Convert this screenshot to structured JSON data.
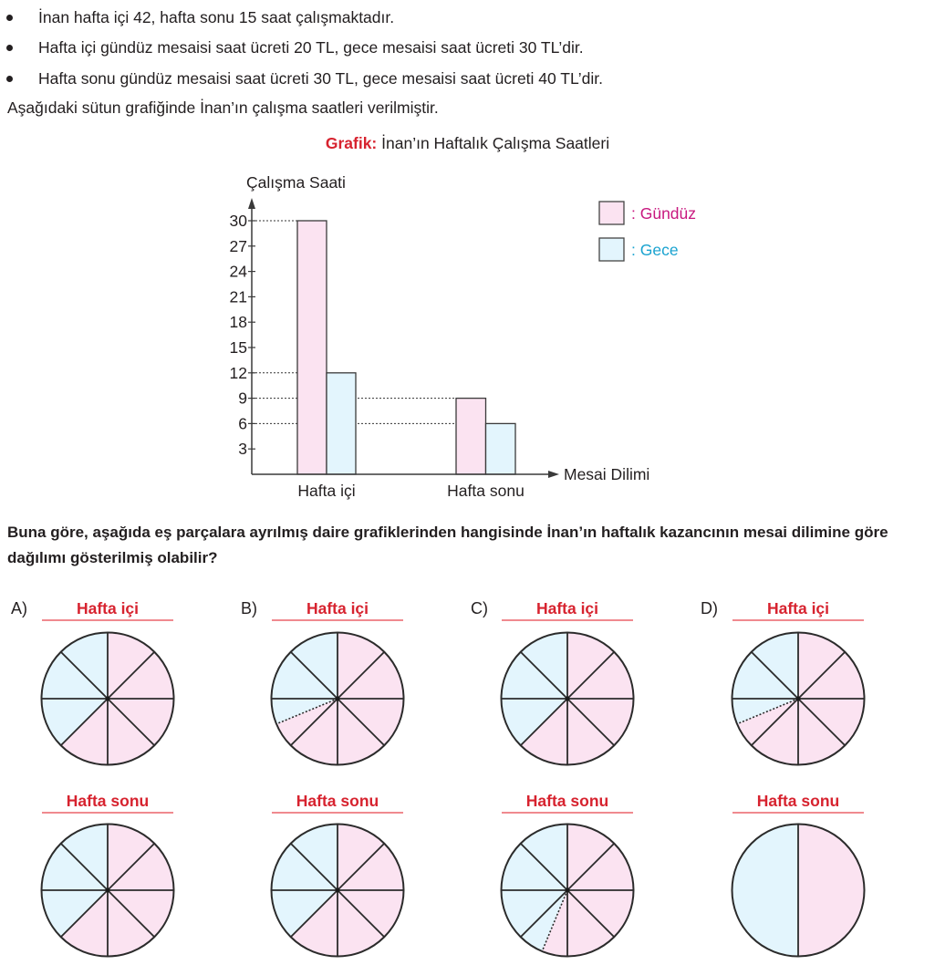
{
  "bullets": [
    "İnan hafta içi 42, hafta sonu 15 saat çalışmaktadır.",
    "Hafta içi gündüz mesaisi saat ücreti 20 TL, gece mesaisi saat ücreti 30 TL’dir.",
    "Hafta sonu gündüz mesaisi saat ücreti 30 TL, gece mesaisi saat ücreti 40 TL’dir."
  ],
  "intro": "Aşağıdaki sütun grafiğinde İnan’ın çalışma saatleri verilmiştir.",
  "colors": {
    "gunduz_fill": "#fbe3f1",
    "gece_fill": "#e3f5fd",
    "gunduz_text": "#c8187f",
    "gece_text": "#1aa3d0",
    "title_red": "#d7232f"
  },
  "chart_data": [
    {
      "type": "bar",
      "title_label": "Grafik:",
      "title": "İnan’ın Haftalık Çalışma Saatleri",
      "ylabel": "Çalışma Saati",
      "xlabel": "Mesai Dilimi",
      "categories": [
        "Hafta içi",
        "Hafta sonu"
      ],
      "series": [
        {
          "name": "Gündüz",
          "legend": ": Gündüz",
          "values": [
            30,
            9
          ]
        },
        {
          "name": "Gece",
          "legend": ": Gece",
          "values": [
            12,
            6
          ]
        }
      ],
      "yticks": [
        3,
        6,
        9,
        12,
        15,
        18,
        21,
        24,
        27,
        30
      ],
      "ylim": [
        0,
        31
      ],
      "dotted_guides": [
        30,
        12,
        9,
        6
      ],
      "legend_position": "top-right",
      "grid": false
    },
    {
      "type": "pie",
      "options": [
        {
          "letter": "A)",
          "charts": [
            {
              "title": "Hafta içi",
              "slices": 8,
              "gece_fraction": 0.375,
              "gunduz_fraction": 0.625,
              "dotted_split": false
            },
            {
              "title": "Hafta sonu",
              "slices": 8,
              "gece_fraction": 0.375,
              "gunduz_fraction": 0.625,
              "dotted_split": false
            }
          ]
        },
        {
          "letter": "B)",
          "charts": [
            {
              "title": "Hafta içi",
              "slices": 8,
              "gece_fraction": 0.3125,
              "gunduz_fraction": 0.6875,
              "dotted_split": true
            },
            {
              "title": "Hafta sonu",
              "slices": 8,
              "gece_fraction": 0.375,
              "gunduz_fraction": 0.625,
              "dotted_split": false
            }
          ]
        },
        {
          "letter": "C)",
          "charts": [
            {
              "title": "Hafta içi",
              "slices": 8,
              "gece_fraction": 0.375,
              "gunduz_fraction": 0.625,
              "dotted_split": false
            },
            {
              "title": "Hafta sonu",
              "slices": 8,
              "gece_fraction": 0.4375,
              "gunduz_fraction": 0.5625,
              "dotted_split": true
            }
          ]
        },
        {
          "letter": "D)",
          "charts": [
            {
              "title": "Hafta içi",
              "slices": 8,
              "gece_fraction": 0.3125,
              "gunduz_fraction": 0.6875,
              "dotted_split": true
            },
            {
              "title": "Hafta sonu",
              "slices": 2,
              "gece_fraction": 0.5,
              "gunduz_fraction": 0.5,
              "dotted_split": false
            }
          ]
        }
      ]
    }
  ],
  "question": "Buna göre, aşağıda eş parçalara ayrılmış daire grafiklerinden hangisinde İnan’ın haftalık kazancının mesai dilimine göre dağılımı gösterilmiş olabilir?"
}
